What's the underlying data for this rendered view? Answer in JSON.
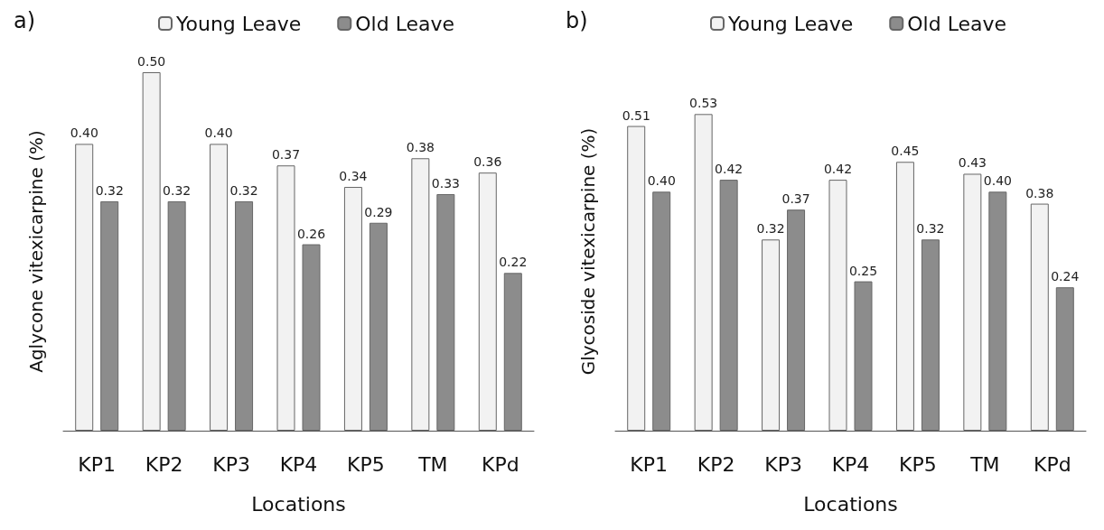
{
  "chart_data": [
    {
      "type": "bar",
      "title": "a)",
      "xlabel": "Locations",
      "ylabel": "Aglycone vitexicarpine (%)",
      "categories": [
        "KP1",
        "KP2",
        "KP3",
        "KP4",
        "KP5",
        "TM",
        "KPd"
      ],
      "legend": "top",
      "series": [
        {
          "name": "Young Leave",
          "color": "#f2f2f2",
          "values": [
            0.4,
            0.5,
            0.4,
            0.37,
            0.34,
            0.38,
            0.36
          ],
          "value_labels": [
            "0.40",
            "0.50",
            "0.40",
            "0.37",
            "0.34",
            "0.38",
            "0.36"
          ]
        },
        {
          "name": "Old Leave",
          "color": "#8c8c8c",
          "values": [
            0.32,
            0.32,
            0.32,
            0.26,
            0.29,
            0.33,
            0.22
          ],
          "value_labels": [
            "0.32",
            "0.32",
            "0.32",
            "0.26",
            "0.29",
            "0.33",
            "0.22"
          ]
        }
      ]
    },
    {
      "type": "bar",
      "title": "b)",
      "xlabel": "Locations",
      "ylabel": "Glycoside vitexicarpine (%)",
      "categories": [
        "KP1",
        "KP2",
        "KP3",
        "KP4",
        "KP5",
        "TM",
        "KPd"
      ],
      "legend": "top",
      "series": [
        {
          "name": "Young Leave",
          "color": "#f2f2f2",
          "values": [
            0.51,
            0.53,
            0.32,
            0.42,
            0.45,
            0.43,
            0.38
          ],
          "value_labels": [
            "0.51",
            "0.53",
            "0.32",
            "0.42",
            "0.45",
            "0.43",
            "0.38"
          ]
        },
        {
          "name": "Old Leave",
          "color": "#8c8c8c",
          "values": [
            0.4,
            0.42,
            0.37,
            0.25,
            0.32,
            0.4,
            0.24
          ],
          "value_labels": [
            "0.40",
            "0.42",
            "0.37",
            "0.25",
            "0.32",
            "0.40",
            "0.24"
          ]
        }
      ]
    }
  ]
}
